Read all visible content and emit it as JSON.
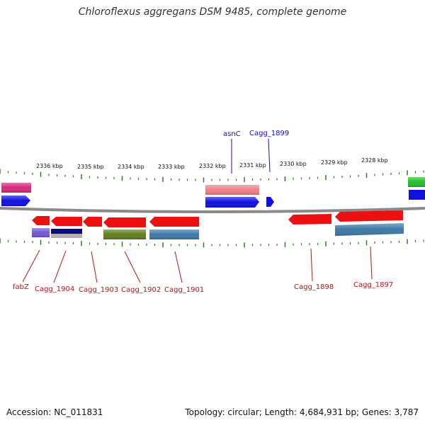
{
  "title": "Chloroflexus aggregans DSM 9485, complete genome",
  "footer": {
    "accession": "Accession: NC_011831",
    "summary": "Topology: circular; Length: 4,684,931 bp; Genes: 3,787"
  },
  "colors": {
    "backbone": "#8a8a8a",
    "tick": "#2a7a22",
    "forward_label": "#1010c0",
    "reverse_label": "#c01010"
  },
  "scale_ticks": [
    "2336 kbp",
    "2335 kbp",
    "2334 kbp",
    "2333 kbp",
    "2332 kbp",
    "2331 kbp",
    "2330 kbp",
    "2329 kbp",
    "2328 kbp"
  ],
  "labeled_genes": [
    {
      "name": "asnC",
      "strand": "forward"
    },
    {
      "name": "Cagg_1899",
      "strand": "forward"
    },
    {
      "name": "fabZ",
      "strand": "reverse"
    },
    {
      "name": "Cagg_1904",
      "strand": "reverse"
    },
    {
      "name": "Cagg_1903",
      "strand": "reverse"
    },
    {
      "name": "Cagg_1902",
      "strand": "reverse"
    },
    {
      "name": "Cagg_1901",
      "strand": "reverse"
    },
    {
      "name": "Cagg_1898",
      "strand": "reverse"
    },
    {
      "name": "Cagg_1897",
      "strand": "reverse"
    }
  ]
}
